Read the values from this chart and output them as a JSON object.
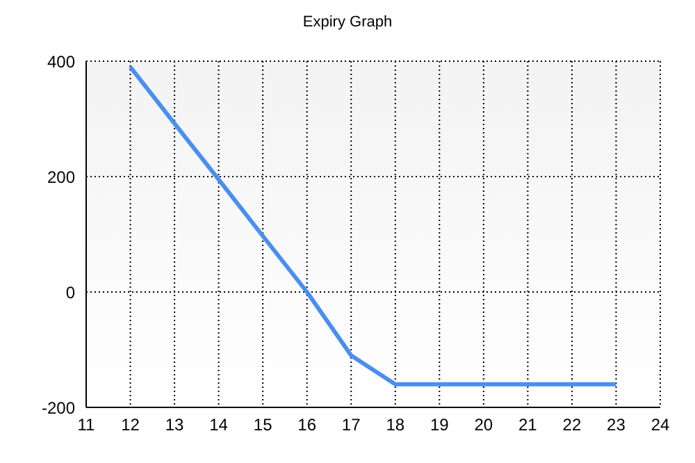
{
  "chart_data": {
    "type": "line",
    "title": "Expiry Graph",
    "x": [
      12,
      13,
      14,
      15,
      16,
      17,
      18,
      19,
      20,
      21,
      22,
      23
    ],
    "series": [
      {
        "color": "#4a8ff0",
        "values": [
          390,
          292,
          195,
          97,
          0,
          -110,
          -160,
          -160,
          -160,
          -160,
          -160,
          -160
        ]
      }
    ],
    "xlim": [
      11,
      24
    ],
    "xticks": [
      11,
      12,
      13,
      14,
      15,
      16,
      17,
      18,
      19,
      20,
      21,
      22,
      23,
      24
    ],
    "ylim": [
      -200,
      400
    ],
    "yticks": [
      -200,
      0,
      200,
      400
    ],
    "grid": true,
    "marker": "none",
    "line_style": "solid"
  }
}
